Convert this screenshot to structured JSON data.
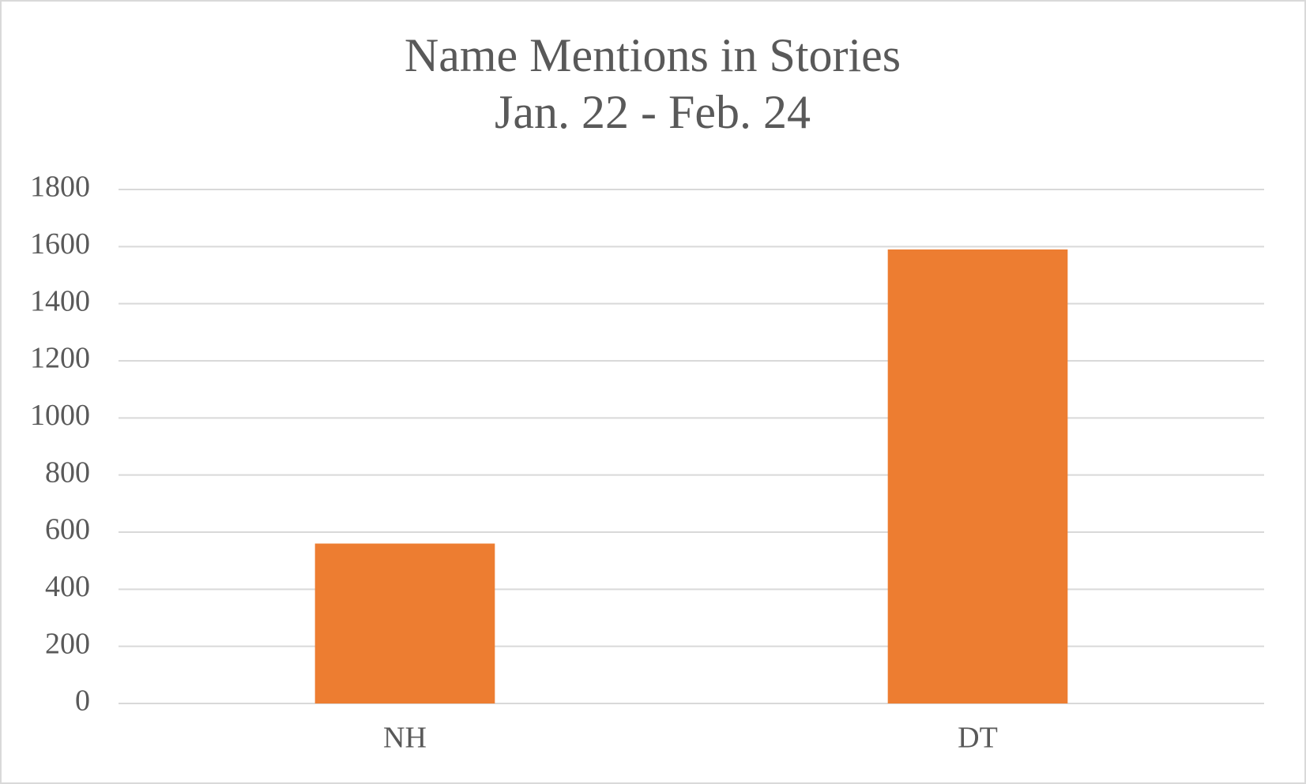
{
  "chart_data": {
    "type": "bar",
    "title": "Name Mentions in Stories",
    "subtitle": "Jan. 22 - Feb. 24",
    "categories": [
      "NH",
      "DT"
    ],
    "values": [
      560,
      1590
    ],
    "color": "#ed7d31",
    "ylim": [
      0,
      1800
    ],
    "yticks": [
      0,
      200,
      400,
      600,
      800,
      1000,
      1200,
      1400,
      1600,
      1800
    ],
    "grid": true
  }
}
